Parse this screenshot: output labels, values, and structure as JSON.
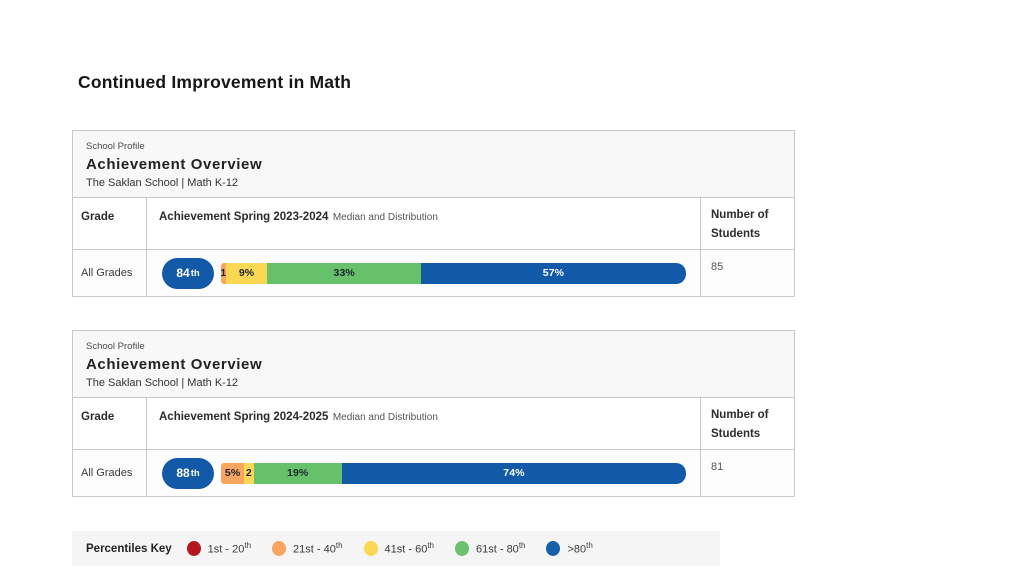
{
  "slide": {
    "title": "Continued Improvement in Math"
  },
  "colors": {
    "median_pill_blue": "#1259a7",
    "panel_header_bg": "#f8f8f8",
    "panel_border": "#c9c9c9",
    "legend_bg": "#f5f5f5",
    "band_red": "#b2181d",
    "band_orange": "#f9a45f",
    "band_yellow": "#fbd853",
    "band_green": "#67c06a",
    "band_blue": "#1259a7"
  },
  "panels": [
    {
      "eyebrow": "School Profile",
      "title": "Achievement Overview",
      "subtitle": "The Saklan School | Math K-12",
      "columns": {
        "grade": "Grade",
        "achievement": "Achievement Spring 2023-2024",
        "achievement_sub": "Median and Distribution",
        "students": "Number of Students"
      },
      "row": {
        "grade": "All Grades",
        "median_main": "84",
        "median_sup": "th",
        "students": "85"
      }
    },
    {
      "eyebrow": "School Profile",
      "title": "Achievement Overview",
      "subtitle": "The Saklan School | Math K-12",
      "columns": {
        "grade": "Grade",
        "achievement": "Achievement Spring 2024-2025",
        "achievement_sub": "Median and Distribution",
        "students": "Number of Students"
      },
      "row": {
        "grade": "All Grades",
        "median_main": "88",
        "median_sup": "th",
        "students": "81"
      }
    }
  ],
  "chart_data": [
    {
      "type": "bar",
      "stacked": true,
      "title": "Achievement Spring 2023-2024 Median and Distribution",
      "row_category": "All Grades",
      "median_percentile": "84th",
      "number_of_students": 85,
      "categories": [
        "21st - 40th",
        "41st - 60th",
        "61st - 80th",
        ">80th"
      ],
      "values": [
        1,
        9,
        33,
        57
      ],
      "labels": [
        "1",
        "9%",
        "33%",
        "57%"
      ],
      "colors": [
        "#f9a45f",
        "#fbd853",
        "#67c06a",
        "#1259a7"
      ],
      "label_colors": [
        "#1b2430",
        "#1b2430",
        "#1b2430",
        "#ffffff"
      ],
      "xlim": [
        0,
        100
      ],
      "unit": "percent of students"
    },
    {
      "type": "bar",
      "stacked": true,
      "title": "Achievement Spring 2024-2025 Median and Distribution",
      "row_category": "All Grades",
      "median_percentile": "88th",
      "number_of_students": 81,
      "categories": [
        "21st - 40th",
        "41st - 60th",
        "61st - 80th",
        ">80th"
      ],
      "values": [
        5,
        2,
        19,
        74
      ],
      "labels": [
        "5%",
        "2",
        "19%",
        "74%"
      ],
      "colors": [
        "#f9a45f",
        "#fbd853",
        "#67c06a",
        "#1259a7"
      ],
      "label_colors": [
        "#1b2430",
        "#1b2430",
        "#1b2430",
        "#ffffff"
      ],
      "xlim": [
        0,
        100
      ],
      "unit": "percent of students"
    }
  ],
  "legend": {
    "title": "Percentiles Key",
    "items": [
      {
        "label": "1st - 20",
        "sup": "th",
        "color": "#b2181d"
      },
      {
        "label": "21st - 40",
        "sup": "th",
        "color": "#f9a45f"
      },
      {
        "label": "41st - 60",
        "sup": "th",
        "color": "#fbd853"
      },
      {
        "label": "61st - 80",
        "sup": "th",
        "color": "#6cc06e"
      },
      {
        "label": ">80",
        "sup": "th",
        "color": "#1560a9"
      }
    ]
  }
}
